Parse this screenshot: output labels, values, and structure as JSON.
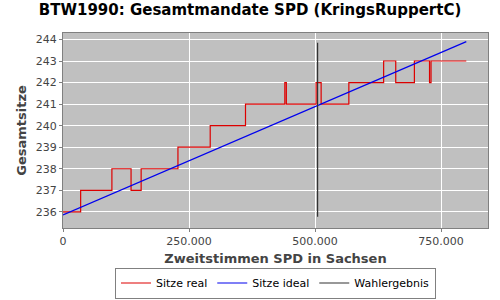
{
  "chart_data": {
    "type": "line",
    "title": "BTW1990: Gesamtmandate SPD (KringsRuppertC)",
    "x_label": "Zweitstimmen SPD in Sachsen",
    "y_label": "Gesamtsitze",
    "xlim": [
      0,
      843000
    ],
    "ylim": [
      235.25,
      244.3
    ],
    "xticks": [
      0,
      {
        "value": 250000,
        "label": "250.000"
      },
      {
        "value": 500000,
        "label": "500.000"
      },
      {
        "value": 750000,
        "label": "750.000"
      }
    ],
    "yticks": [
      236,
      237,
      238,
      239,
      240,
      241,
      242,
      243,
      244
    ],
    "grid": true,
    "legend": "bottom",
    "series": [
      {
        "name": "Sitze real",
        "color": "#dd0000",
        "line_style": "step",
        "x": [
          0,
          35000,
          97000,
          135000,
          155000,
          228000,
          292000,
          362000,
          440000,
          443000,
          502000,
          512000,
          567000,
          636000,
          660000,
          697000,
          727000,
          730000,
          800000
        ],
        "values": [
          236,
          237,
          238,
          237,
          238,
          239,
          240,
          241,
          242,
          241,
          242,
          241,
          242,
          243,
          242,
          243,
          242,
          243,
          243
        ]
      },
      {
        "name": "Sitze ideal",
        "color": "#0000ee",
        "line_style": "solid",
        "x": [
          0,
          800000
        ],
        "values": [
          235.86,
          243.9
        ]
      },
      {
        "name": "Wahlergebnis",
        "color": "#333333",
        "line_style": "solid",
        "x": [
          505000,
          505000
        ],
        "values": [
          235.77,
          243.85
        ]
      }
    ]
  }
}
